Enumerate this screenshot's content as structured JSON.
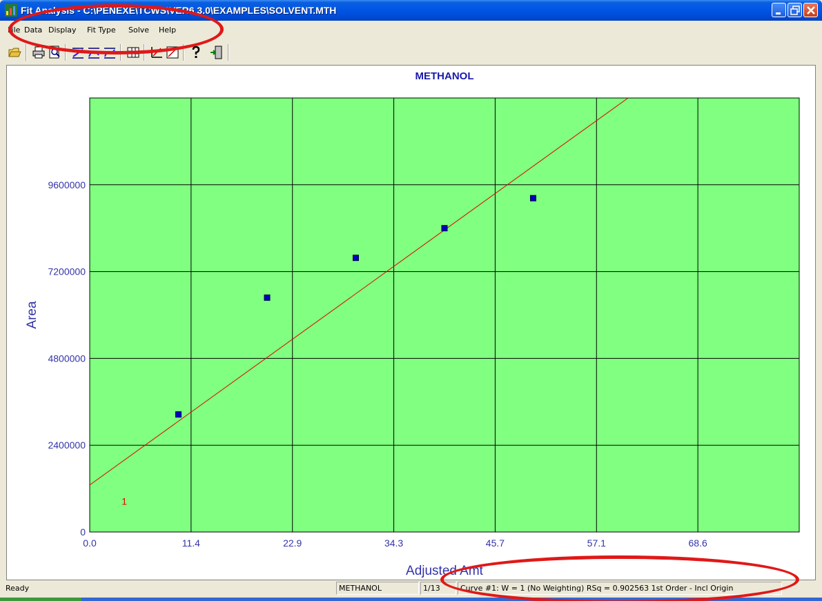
{
  "window": {
    "title": "Fit Analysis - C:\\PENEXE\\TCWS\\VER6.3.0\\EXAMPLES\\SOLVENT.MTH",
    "icons": {
      "app": "chart-app-icon",
      "minimize": "minimize-icon",
      "maximize": "restore-icon",
      "close": "close-icon"
    }
  },
  "menu": {
    "items": [
      {
        "label": "File"
      },
      {
        "label": "Data"
      },
      {
        "label": "Display"
      },
      {
        "label": "Fit Type"
      },
      {
        "label": "Solve"
      },
      {
        "label": "Help"
      }
    ]
  },
  "toolbar": {
    "buttons": [
      "open-icon",
      "print-icon",
      "print-preview-icon",
      "fit-linear-icon",
      "fit-quadratic-icon",
      "fit-cubic-icon",
      "table-icon",
      "zoom-in-icon",
      "zoom-out-icon",
      "help-icon",
      "exit-icon"
    ]
  },
  "chart_data": {
    "type": "scatter",
    "title": "METHANOL",
    "xlabel": "Adjusted Amt",
    "ylabel": "Area",
    "xlim": [
      0,
      80
    ],
    "ylim": [
      0,
      12000000
    ],
    "x_ticks": [
      "0.0",
      "11.4",
      "22.9",
      "34.3",
      "45.7",
      "57.1",
      "68.6"
    ],
    "x_tick_values": [
      0,
      11.4,
      22.9,
      34.3,
      45.7,
      57.1,
      68.6
    ],
    "y_ticks": [
      "0",
      "2400000",
      "4800000",
      "7200000",
      "9600000"
    ],
    "y_tick_values": [
      0,
      2400000,
      4800000,
      7200000,
      9600000
    ],
    "grid": true,
    "background": "#80ff80",
    "series": [
      {
        "type": "scatter",
        "x": [
          10.0,
          20.0,
          30.0,
          40.0,
          50.0
        ],
        "y": [
          3250000,
          6480000,
          7580000,
          8400000,
          9230000
        ],
        "color": "#0000c0"
      }
    ],
    "fit_line": {
      "label": "1",
      "x": [
        0,
        60.7
      ],
      "y": [
        1300000,
        12000000
      ],
      "color": "#e00000"
    }
  },
  "status": {
    "ready": "Ready",
    "compound": "METHANOL",
    "index": "1/13",
    "curve": "Curve #1:  W = 1 (No Weighting) RSq = 0.902563 1st Order - Incl Origin"
  },
  "colors": {
    "title_bar": "#0055e5",
    "plot_bg": "#80ff80",
    "axis_text": "#3333aa",
    "title_text": "#1a1aaa",
    "annotation": "#e01818"
  }
}
